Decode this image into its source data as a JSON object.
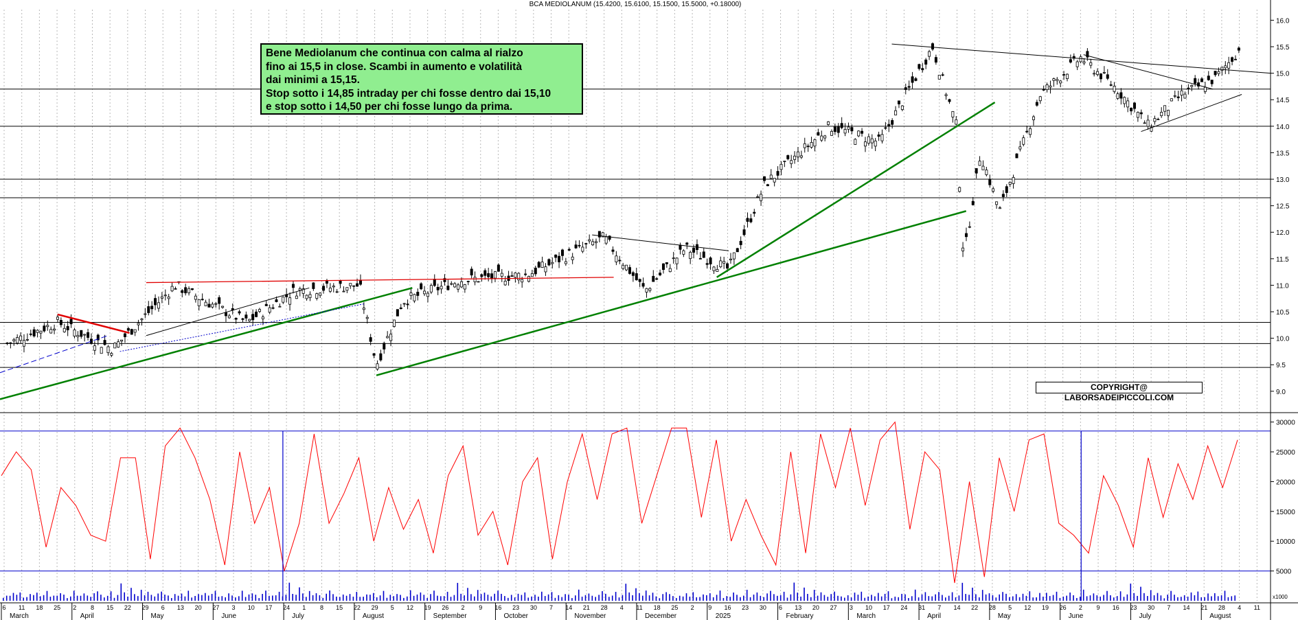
{
  "header": {
    "title": "BCA MEDIOLANUM (15.4200, 15.6100, 15.1500, 15.5000, +0.18000)"
  },
  "note": {
    "lines": [
      "Bene Mediolanum che continua con calma al rialzo",
      "fino ai 15,5 in close. Scambi in aumento e volatilità",
      "dai minimi a 15,15.",
      "Stop sotto i 14,85 intraday per chi fosse dentro dai 15,10",
      "e stop sotto i 14,50 per chi fosse lungo da prima."
    ]
  },
  "copyright": "COPYRIGHT@ LABORSADEIPICCOLI.COM",
  "colors": {
    "candles": "#000000",
    "trend_green": "#008000",
    "trend_red": "#e00000",
    "oscillator": "#ff0000",
    "threshold": "#0000cc",
    "note_bg": "#90ee90"
  },
  "chart_data": [
    {
      "type": "candlestick",
      "title": "BCA MEDIOLANUM (15.4200, 15.6100, 15.1500, 15.5000, +0.18000)",
      "ylim": [
        8.7,
        16.2
      ],
      "y_ticks": [
        "9.0",
        "9.5",
        "10.0",
        "10.5",
        "11.0",
        "11.5",
        "12.0",
        "12.5",
        "13.0",
        "13.5",
        "14.0",
        "14.5",
        "15.0",
        "15.5",
        "16.0"
      ],
      "last_bar": {
        "open": 15.42,
        "high": 15.61,
        "low": 15.15,
        "close": 15.5
      },
      "horizontal_levels": [
        9.45,
        9.9,
        10.3,
        12.65,
        13.0,
        14.0,
        14.7
      ],
      "close_path": [
        {
          "date": "2024-03-04",
          "close": 9.9
        },
        {
          "date": "2024-03-25",
          "close": 10.3
        },
        {
          "date": "2024-04-17",
          "close": 9.8
        },
        {
          "date": "2024-05-13",
          "close": 11.0
        },
        {
          "date": "2024-06-12",
          "close": 10.3
        },
        {
          "date": "2024-07-02",
          "close": 10.9
        },
        {
          "date": "2024-07-29",
          "close": 11.0
        },
        {
          "date": "2024-08-05",
          "close": 9.5
        },
        {
          "date": "2024-08-16",
          "close": 10.7
        },
        {
          "date": "2024-09-09",
          "close": 11.1
        },
        {
          "date": "2024-10-07",
          "close": 11.2
        },
        {
          "date": "2024-11-08",
          "close": 11.9
        },
        {
          "date": "2024-11-25",
          "close": 10.9
        },
        {
          "date": "2024-12-12",
          "close": 11.7
        },
        {
          "date": "2024-12-30",
          "close": 11.3
        },
        {
          "date": "2025-01-14",
          "close": 12.9
        },
        {
          "date": "2025-02-10",
          "close": 14.0
        },
        {
          "date": "2025-03-03",
          "close": 13.7
        },
        {
          "date": "2025-03-25",
          "close": 15.5
        },
        {
          "date": "2025-04-04",
          "close": 14.0
        },
        {
          "date": "2025-04-07",
          "close": 11.5
        },
        {
          "date": "2025-04-14",
          "close": 13.5
        },
        {
          "date": "2025-04-22",
          "close": 12.4
        },
        {
          "date": "2025-05-09",
          "close": 14.6
        },
        {
          "date": "2025-05-26",
          "close": 15.3
        },
        {
          "date": "2025-06-10",
          "close": 14.7
        },
        {
          "date": "2025-06-23",
          "close": 14.0
        },
        {
          "date": "2025-07-07",
          "close": 14.6
        },
        {
          "date": "2025-07-21",
          "close": 14.9
        },
        {
          "date": "2025-08-01",
          "close": 15.5
        }
      ],
      "x_tick_labels": [
        "6",
        "11",
        "18",
        "25",
        "2",
        "8",
        "15",
        "22",
        "29",
        "6",
        "13",
        "20",
        "27",
        "3",
        "10",
        "17",
        "24",
        "1",
        "8",
        "15",
        "22",
        "29",
        "5",
        "12",
        "19",
        "26",
        "2",
        "9",
        "16",
        "23",
        "30",
        "7",
        "14",
        "21",
        "28",
        "4",
        "11",
        "18",
        "25",
        "2",
        "9",
        "16",
        "23",
        "30",
        "6",
        "13",
        "20",
        "27",
        "3",
        "10",
        "17",
        "24",
        "31",
        "7",
        "14",
        "22",
        "28",
        "5",
        "12",
        "19",
        "26",
        "2",
        "9",
        "16",
        "23",
        "30",
        "7",
        "14",
        "21",
        "28",
        "4",
        "11"
      ],
      "x_month_labels": [
        "March",
        "April",
        "May",
        "June",
        "July",
        "August",
        "September",
        "October",
        "November",
        "December",
        "2025",
        "February",
        "March",
        "April",
        "May",
        "June",
        "July",
        "August"
      ]
    },
    {
      "type": "line",
      "series": [
        {
          "name": "",
          "values": [
            21000,
            25000,
            22000,
            9000,
            19000,
            16000,
            11000,
            10000,
            24000,
            24000,
            7000,
            26000,
            29000,
            24000,
            17000,
            6000,
            25000,
            13000,
            19000,
            5000,
            13000,
            28000,
            13000,
            18000,
            24000,
            10000,
            19000,
            12000,
            17000,
            8000,
            21000,
            26000,
            11000,
            15000,
            6000,
            20000,
            24000,
            7000,
            20000,
            28000,
            17000,
            28000,
            29000,
            13000,
            21000,
            29000,
            29000,
            14000,
            27000,
            10000,
            17000,
            11000,
            6000,
            25000,
            8000,
            28000,
            19000,
            29000,
            16000,
            27000,
            30000,
            12000,
            25000,
            22000,
            3000,
            20000,
            4000,
            24000,
            15000,
            27000,
            28000,
            13000,
            11000,
            8000,
            21000,
            16000,
            9000,
            24000,
            14000,
            23000,
            17000,
            26000,
            19000,
            27000
          ]
        }
      ],
      "ylim": [
        0,
        31000
      ],
      "y_ticks": [
        "5000",
        "10000",
        "15000",
        "20000",
        "25000",
        "30000"
      ],
      "threshold_levels": [
        5000,
        28500
      ]
    },
    {
      "type": "bar",
      "name": "volume",
      "scale_label": "x1000",
      "relative_values": [
        0.3,
        0.6,
        0.4,
        0.8,
        0.5,
        1.0,
        0.3,
        0.4,
        0.7,
        0.5,
        0.9,
        0.4,
        0.6,
        1.0,
        0.3,
        0.5,
        0.4,
        0.8,
        0.6,
        0.3,
        0.5,
        1.2,
        0.4,
        0.6,
        0.8,
        0.5,
        0.3,
        0.7,
        1.0,
        0.6,
        0.4,
        0.5,
        0.9,
        0.3,
        0.6,
        2.0,
        0.8,
        0.5,
        1.5,
        0.7,
        0.4,
        1.1,
        0.6,
        0.9,
        0.5,
        0.3,
        0.7,
        1.0,
        0.6,
        0.4
      ]
    }
  ]
}
